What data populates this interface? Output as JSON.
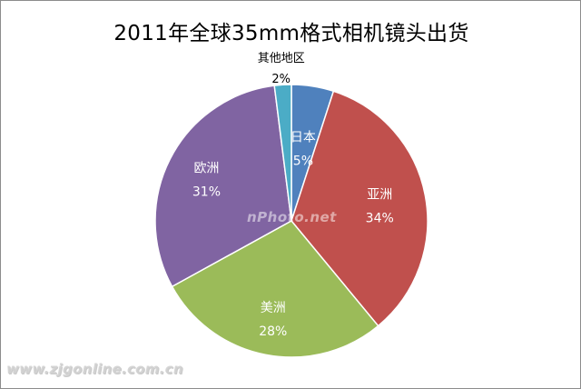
{
  "chart_data": {
    "type": "pie",
    "title": "2011年全球35mm格式相机镜头出货",
    "slices": [
      {
        "name": "日本",
        "value": 5,
        "label": "5%",
        "color": "#4f81bd"
      },
      {
        "name": "亚洲",
        "value": 34,
        "label": "34%",
        "color": "#c0504d"
      },
      {
        "name": "美洲",
        "value": 28,
        "label": "28%",
        "color": "#9bbb59"
      },
      {
        "name": "欧洲",
        "value": 31,
        "label": "31%",
        "color": "#8064a2"
      },
      {
        "name": "其他地区",
        "value": 2,
        "label": "2%",
        "color": "#4bacc6"
      }
    ],
    "start_angle": "12 o'clock",
    "direction": "clockwise"
  },
  "watermarks": {
    "center": "nPhoto.net",
    "corner": "www.zjgonline.com.cn"
  }
}
